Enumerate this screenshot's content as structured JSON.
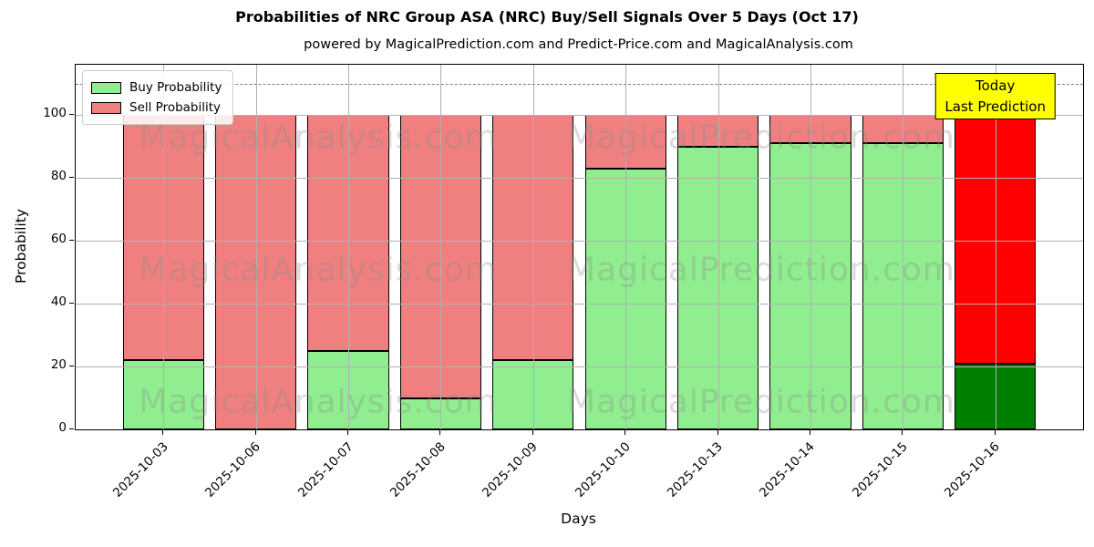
{
  "title": "Probabilities of NRC Group ASA (NRC) Buy/Sell Signals Over 5 Days (Oct 17)",
  "subtitle": "powered by MagicalPrediction.com and Predict-Price.com and MagicalAnalysis.com",
  "axes": {
    "xlabel": "Days",
    "ylabel": "Probability"
  },
  "legend": {
    "items": [
      {
        "label": "Buy Probability",
        "color": "#90EE90"
      },
      {
        "label": "Sell Probability",
        "color": "#F08080"
      }
    ]
  },
  "annotation": {
    "line1": "Today",
    "line2": "Last Prediction",
    "bg_color": "#FFFF00"
  },
  "watermarks": {
    "left": "MagicalAnalysis.com",
    "right": "MagicalPrediction.com"
  },
  "colors": {
    "buy": "#90EE90",
    "sell": "#F08080",
    "today_buy": "#008000",
    "today_sell": "#FF0000",
    "bar_edge": "#000000",
    "grid": "#b0b0b0",
    "dashed_line": "#7f7f7f",
    "annotation_bg": "#FFFF00",
    "watermark": "#8a8a8a"
  },
  "chart_data": {
    "type": "bar",
    "stacked": true,
    "title": "Probabilities of NRC Group ASA (NRC) Buy/Sell Signals Over 5 Days (Oct 17)",
    "xlabel": "Days",
    "ylabel": "Probability",
    "categories": [
      "2025-10-03",
      "2025-10-06",
      "2025-10-07",
      "2025-10-08",
      "2025-10-09",
      "2025-10-10",
      "2025-10-13",
      "2025-10-14",
      "2025-10-15",
      "2025-10-16"
    ],
    "series": [
      {
        "name": "Buy Probability",
        "values": [
          22,
          0,
          25,
          10,
          22,
          83,
          90,
          91,
          91,
          21
        ]
      },
      {
        "name": "Sell Probability",
        "values": [
          78,
          100,
          75,
          90,
          78,
          17,
          10,
          9,
          9,
          79
        ]
      }
    ],
    "highlight_last_bar": true,
    "yticks": [
      0,
      20,
      40,
      60,
      80,
      100
    ],
    "ylim": [
      0,
      116
    ],
    "dashed_line_y": 110,
    "grid": true,
    "legend_position": "upper left"
  }
}
